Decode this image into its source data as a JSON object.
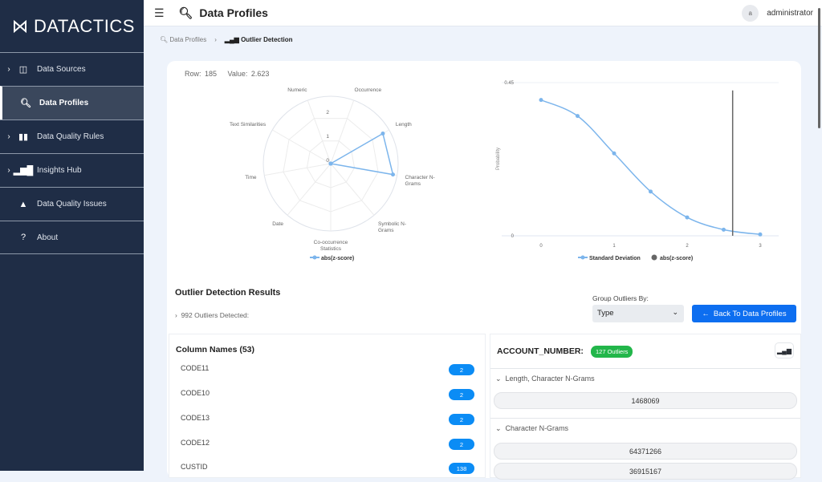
{
  "app": {
    "logo": "DATACTICS"
  },
  "sidebar": {
    "items": [
      {
        "label": "Data Sources",
        "icon": "columns-icon",
        "expandable": true
      },
      {
        "label": "Data Profiles",
        "icon": "magnify-chart-icon",
        "active": true
      },
      {
        "label": "Data Quality Rules",
        "icon": "book-icon",
        "expandable": true
      },
      {
        "label": "Insights Hub",
        "icon": "bar-chart-icon",
        "expandable": true
      },
      {
        "label": "Data Quality Issues",
        "icon": "warning-icon"
      },
      {
        "label": "About",
        "icon": "help-icon"
      }
    ]
  },
  "header": {
    "title": "Data Profiles",
    "user_initial": "a",
    "username": "administrator"
  },
  "breadcrumb": {
    "parent": "Data Profiles",
    "current": "Outlier Detection"
  },
  "selection": {
    "row_label": "Row: 185",
    "value_label": "Value: 2.623"
  },
  "chart_data": [
    {
      "type": "radar",
      "axes": [
        "Numeric",
        "Occurrence",
        "Length",
        "Character N-Grams",
        "Symbolic N-Grams",
        "Co-occurrence Statistics",
        "Date",
        "Time",
        "Text Similarities"
      ],
      "axis_labels": [
        [
          "Numeric"
        ],
        [
          "Occurrence"
        ],
        [
          "Length"
        ],
        [
          "Character N-",
          "Grams"
        ],
        [
          "Symbolic N-",
          "Grams"
        ],
        [
          "Co-occurrence",
          "Statistics"
        ],
        [
          "Date"
        ],
        [
          "Time"
        ],
        [
          "Text Similarities"
        ]
      ],
      "ticks": [
        "0",
        "1",
        "2"
      ],
      "rmax": 2.8,
      "series": [
        {
          "name": "abs(z-score)",
          "values": [
            0,
            0,
            2.5,
            2.623,
            0,
            0,
            0,
            0,
            0
          ],
          "color": "#7cb5ec"
        }
      ],
      "legend": "bottom"
    },
    {
      "type": "line",
      "ylabel": "Probability",
      "ylim": [
        0,
        0.45
      ],
      "xlim": [
        0,
        3
      ],
      "yticks": [
        "0",
        "0.45"
      ],
      "xticks": [
        "0",
        "1",
        "2",
        "3"
      ],
      "series": [
        {
          "name": "Standard Deviation",
          "x": [
            0,
            0.5,
            1,
            1.5,
            2,
            2.5,
            3
          ],
          "y": [
            0.399,
            0.352,
            0.242,
            0.13,
            0.054,
            0.018,
            0.004
          ],
          "color": "#7cb5ec"
        },
        {
          "name": "abs(z-score)",
          "x": 2.623,
          "color": "#666666"
        }
      ],
      "legend": "bottom"
    }
  ],
  "results": {
    "title": "Outlier Detection Results",
    "detected": "992 Outliers Detected:",
    "group_label": "Group Outliers By:",
    "group_value": "Type",
    "back_button": "Back To Data Profiles"
  },
  "columns": {
    "title": "Column Names (53)",
    "items": [
      {
        "name": "CODE11",
        "count": "2"
      },
      {
        "name": "CODE10",
        "count": "2"
      },
      {
        "name": "CODE13",
        "count": "2"
      },
      {
        "name": "CODE12",
        "count": "2"
      },
      {
        "name": "CUSTID",
        "count": "138"
      }
    ]
  },
  "detail": {
    "column": "ACCOUNT_NUMBER:",
    "badge": "127 Outliers",
    "groups": [
      {
        "title": "Length, Character N-Grams",
        "values": [
          "1468069"
        ]
      },
      {
        "title": "Character N-Grams",
        "values": [
          "64371266",
          "36915167"
        ]
      }
    ]
  }
}
